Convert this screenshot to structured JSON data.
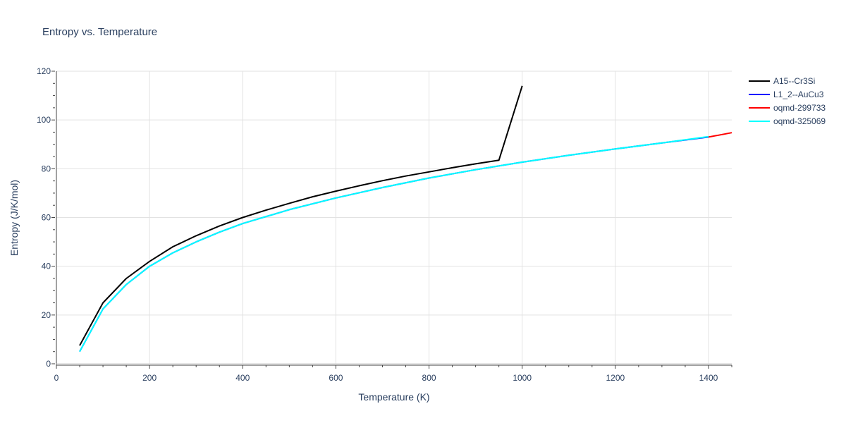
{
  "chart_data": {
    "type": "line",
    "title": "Entropy vs. Temperature",
    "xlabel": "Temperature (K)",
    "ylabel": "Entropy (J/K/mol)",
    "xlim": [
      0,
      1450
    ],
    "ylim": [
      0,
      120
    ],
    "xticks": [
      0,
      200,
      400,
      600,
      800,
      1000,
      1200,
      1400
    ],
    "yticks": [
      0,
      20,
      40,
      60,
      80,
      100,
      120
    ],
    "grid": true,
    "legend_position": "top-right",
    "series": [
      {
        "name": "A15--Cr3Si",
        "color": "#000000",
        "x": [
          50,
          100,
          150,
          200,
          250,
          300,
          350,
          400,
          450,
          500,
          550,
          600,
          650,
          700,
          750,
          800,
          850,
          900,
          950,
          1000
        ],
        "y": [
          7.5,
          25,
          35,
          42,
          48,
          52.5,
          56.5,
          60,
          63,
          65.8,
          68.5,
          70.8,
          73,
          75.1,
          77,
          78.7,
          80.4,
          82,
          83.5,
          114
        ]
      },
      {
        "name": "L1_2--AuCu3",
        "color": "#0000ff",
        "x": [
          50,
          100,
          150,
          200,
          250,
          300,
          350,
          400,
          500,
          600,
          700,
          800,
          900,
          1000,
          1100,
          1200,
          1300,
          1400
        ],
        "y": [
          5,
          22.5,
          32.5,
          40,
          45.5,
          50,
          54,
          57.5,
          63.2,
          68,
          72.3,
          76.2,
          79.6,
          82.7,
          85.5,
          88.1,
          90.6,
          93
        ]
      },
      {
        "name": "oqmd-299733",
        "color": "#ff0000",
        "x": [
          1400,
          1450
        ],
        "y": [
          93,
          94.8
        ]
      },
      {
        "name": "oqmd-325069",
        "color": "#00ffff",
        "x": [
          50,
          100,
          150,
          200,
          250,
          300,
          350,
          400,
          500,
          600,
          700,
          800,
          900,
          1000,
          1100,
          1200,
          1300,
          1400
        ],
        "y": [
          5,
          22.5,
          32.5,
          40,
          45.5,
          50,
          54,
          57.5,
          63.2,
          68,
          72.3,
          76.2,
          79.6,
          82.7,
          85.5,
          88.1,
          90.6,
          93.2
        ]
      }
    ]
  }
}
